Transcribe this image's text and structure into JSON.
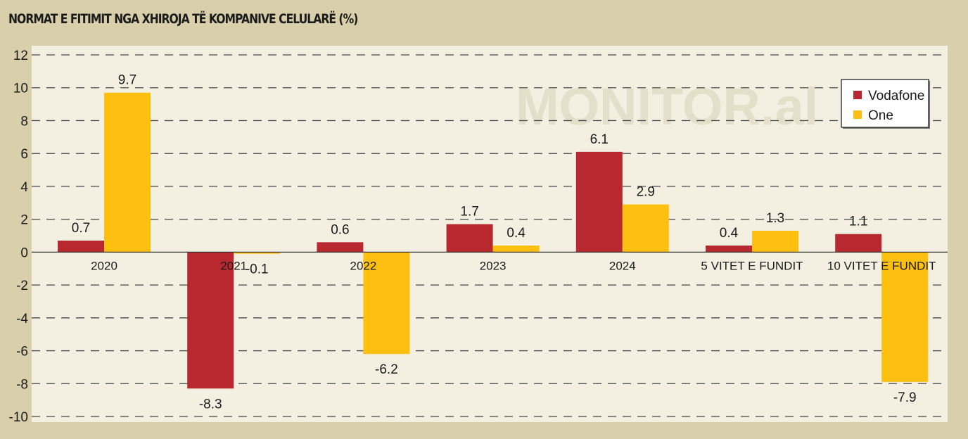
{
  "chart_data": {
    "type": "bar",
    "title": "NORMAT E FITIMIT NGA XHIROJA TË KOMPANIVE CELULARË (%)",
    "watermark": "MONITOR.al",
    "xlabel": "",
    "ylabel": "",
    "ylim": [
      -10,
      12
    ],
    "yticks": [
      12,
      10,
      8,
      6,
      4,
      2,
      0,
      -2,
      -4,
      -6,
      -8,
      -10
    ],
    "grid": true,
    "legend_position": "top-right",
    "categories": [
      "2020",
      "2021",
      "2022",
      "2023",
      "2024",
      "5 VITET E FUNDIT",
      "10 VITET E FUNDIT"
    ],
    "series": [
      {
        "name": "Vodafone",
        "color": "#b8282f",
        "values": [
          0.7,
          -8.3,
          0.6,
          1.7,
          6.1,
          0.4,
          1.1
        ]
      },
      {
        "name": "One",
        "color": "#fdc010",
        "values": [
          9.7,
          -0.1,
          -6.2,
          0.4,
          2.9,
          1.3,
          -7.9
        ]
      }
    ]
  }
}
